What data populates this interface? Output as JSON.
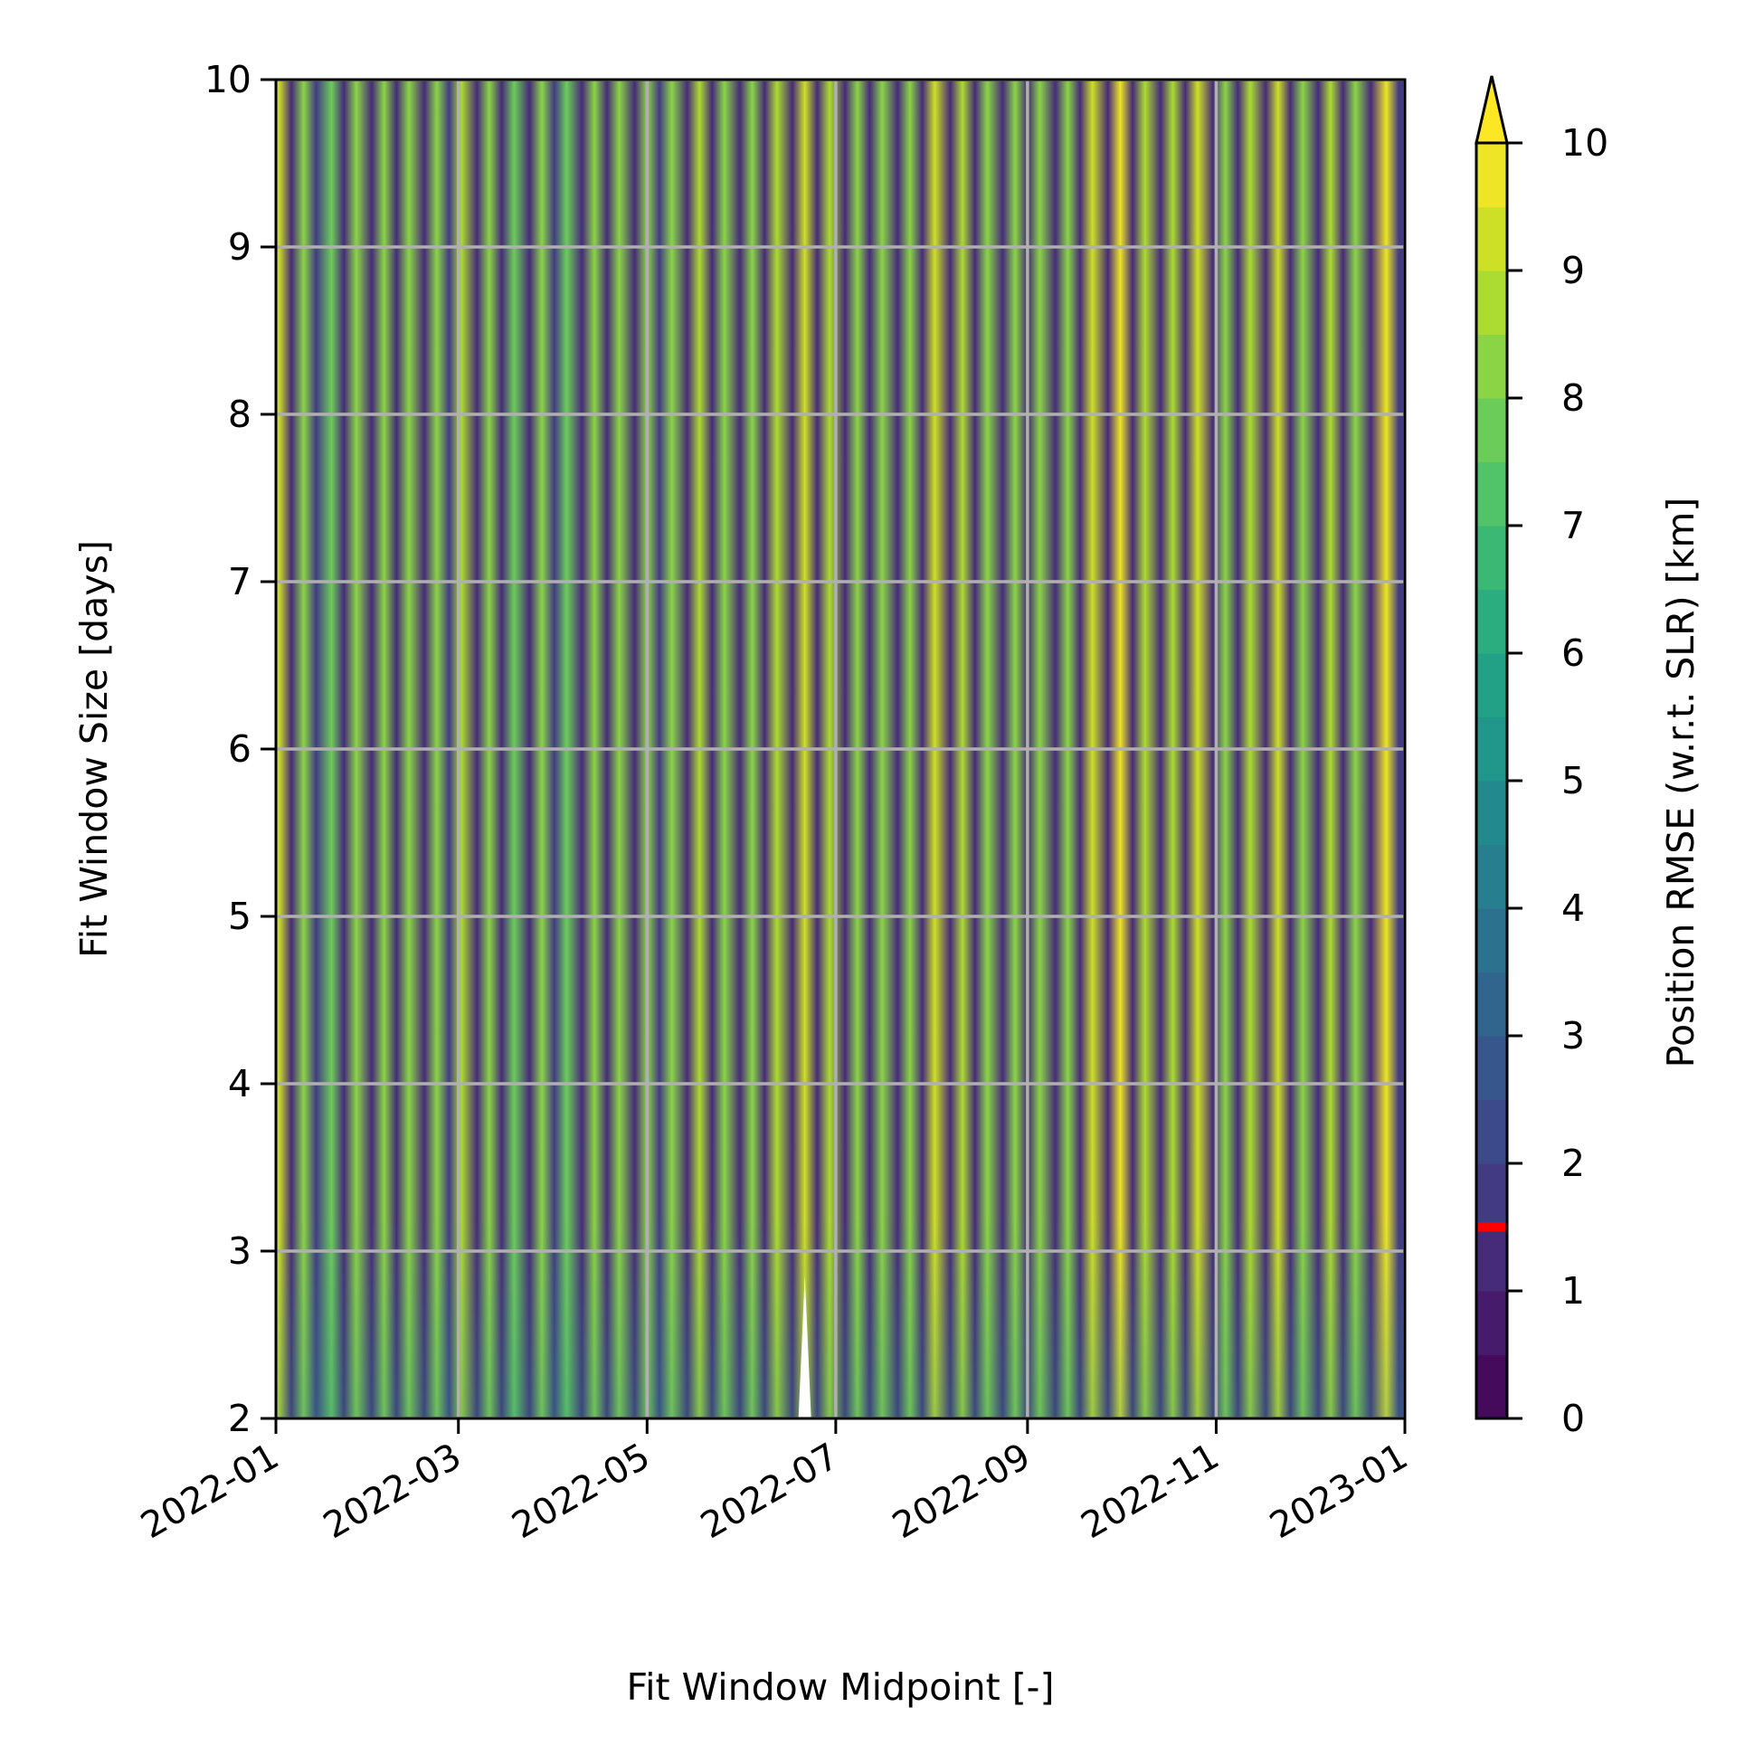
{
  "chart_data": {
    "type": "heatmap",
    "title": "",
    "xlabel": "Fit Window Midpoint [-]",
    "ylabel": "Fit Window Size [days]",
    "x_tick_labels": [
      "2022-01",
      "2022-03",
      "2022-05",
      "2022-07",
      "2022-09",
      "2022-11",
      "2023-01"
    ],
    "x_ticks": [
      "2022-01-01",
      "2022-03-01",
      "2022-05-01",
      "2022-07-01",
      "2022-09-01",
      "2022-11-01",
      "2023-01-01"
    ],
    "xlim": [
      "2022-01-01",
      "2023-01-01"
    ],
    "y_ticks": [
      2,
      3,
      4,
      5,
      6,
      7,
      8,
      9,
      10
    ],
    "ylim": [
      2,
      10
    ],
    "grid": true,
    "colorbar": {
      "label": "Position RMSE (w.r.t. SLR) [km]",
      "ticks": [
        0,
        1,
        2,
        3,
        4,
        5,
        6,
        7,
        8,
        9,
        10
      ],
      "range": [
        0,
        10
      ],
      "levels": 20,
      "extend": "max",
      "colormap": "viridis",
      "reference_marker": {
        "value": 1.5,
        "color": "#ff0000"
      }
    },
    "bands": {
      "description_levels": "vertical stripes of RMSE varying with midpoint date; largely constant with window size",
      "peaks": [
        {
          "x": "2022-01-02",
          "value": 9.2
        },
        {
          "x": "2022-01-10",
          "value": 8.1
        },
        {
          "x": "2022-01-19",
          "value": 7.9
        },
        {
          "x": "2022-01-27",
          "value": 8.0
        },
        {
          "x": "2022-02-05",
          "value": 8.3
        },
        {
          "x": "2022-02-13",
          "value": 8.0
        },
        {
          "x": "2022-02-22",
          "value": 8.2
        },
        {
          "x": "2022-03-02",
          "value": 8.5
        },
        {
          "x": "2022-03-11",
          "value": 8.0
        },
        {
          "x": "2022-03-19",
          "value": 7.8
        },
        {
          "x": "2022-03-28",
          "value": 8.1
        },
        {
          "x": "2022-04-05",
          "value": 7.9
        },
        {
          "x": "2022-04-14",
          "value": 8.0
        },
        {
          "x": "2022-04-22",
          "value": 8.3
        },
        {
          "x": "2022-05-01",
          "value": 8.1
        },
        {
          "x": "2022-05-09",
          "value": 8.0
        },
        {
          "x": "2022-05-18",
          "value": 8.8
        },
        {
          "x": "2022-05-26",
          "value": 8.4
        },
        {
          "x": "2022-06-04",
          "value": 8.2
        },
        {
          "x": "2022-06-12",
          "value": 8.6
        },
        {
          "x": "2022-06-21",
          "value": 9.4
        },
        {
          "x": "2022-06-29",
          "value": 8.5
        },
        {
          "x": "2022-07-08",
          "value": 8.2
        },
        {
          "x": "2022-07-16",
          "value": 8.4
        },
        {
          "x": "2022-07-25",
          "value": 8.3
        },
        {
          "x": "2022-08-02",
          "value": 9.0
        },
        {
          "x": "2022-08-11",
          "value": 8.5
        },
        {
          "x": "2022-08-19",
          "value": 8.3
        },
        {
          "x": "2022-08-28",
          "value": 8.1
        },
        {
          "x": "2022-09-05",
          "value": 8.0
        },
        {
          "x": "2022-09-14",
          "value": 8.3
        },
        {
          "x": "2022-09-22",
          "value": 9.1
        },
        {
          "x": "2022-10-01",
          "value": 9.5
        },
        {
          "x": "2022-10-09",
          "value": 8.9
        },
        {
          "x": "2022-10-18",
          "value": 8.6
        },
        {
          "x": "2022-10-26",
          "value": 9.3
        },
        {
          "x": "2022-11-04",
          "value": 8.4
        },
        {
          "x": "2022-11-12",
          "value": 8.6
        },
        {
          "x": "2022-11-21",
          "value": 9.4
        },
        {
          "x": "2022-11-29",
          "value": 8.2
        },
        {
          "x": "2022-12-08",
          "value": 8.6
        },
        {
          "x": "2022-12-16",
          "value": 8.3
        },
        {
          "x": "2022-12-26",
          "value": 9.8
        }
      ],
      "troughs": [
        {
          "x": "2022-01-06",
          "value": 1.2
        },
        {
          "x": "2022-01-14",
          "value": 1.5
        },
        {
          "x": "2022-01-23",
          "value": 1.3
        },
        {
          "x": "2022-02-01",
          "value": 1.4
        },
        {
          "x": "2022-02-09",
          "value": 1.2
        },
        {
          "x": "2022-02-18",
          "value": 1.3
        },
        {
          "x": "2022-02-26",
          "value": 1.5
        },
        {
          "x": "2022-03-07",
          "value": 1.2
        },
        {
          "x": "2022-03-15",
          "value": 1.4
        },
        {
          "x": "2022-03-24",
          "value": 1.3
        },
        {
          "x": "2022-04-01",
          "value": 1.5
        },
        {
          "x": "2022-04-10",
          "value": 1.2
        },
        {
          "x": "2022-04-18",
          "value": 1.4
        },
        {
          "x": "2022-04-27",
          "value": 1.3
        },
        {
          "x": "2022-05-05",
          "value": 1.5
        },
        {
          "x": "2022-05-14",
          "value": 1.3
        },
        {
          "x": "2022-05-22",
          "value": 1.2
        },
        {
          "x": "2022-05-31",
          "value": 1.4
        },
        {
          "x": "2022-06-08",
          "value": 1.3
        },
        {
          "x": "2022-06-17",
          "value": 1.2
        },
        {
          "x": "2022-06-25",
          "value": 1.4
        },
        {
          "x": "2022-07-04",
          "value": 1.3
        },
        {
          "x": "2022-07-12",
          "value": 1.2
        },
        {
          "x": "2022-07-21",
          "value": 1.4
        },
        {
          "x": "2022-07-29",
          "value": 1.3
        },
        {
          "x": "2022-08-07",
          "value": 1.2
        },
        {
          "x": "2022-08-15",
          "value": 1.3
        },
        {
          "x": "2022-08-24",
          "value": 1.4
        },
        {
          "x": "2022-09-01",
          "value": 1.3
        },
        {
          "x": "2022-09-10",
          "value": 1.2
        },
        {
          "x": "2022-09-18",
          "value": 1.4
        },
        {
          "x": "2022-09-27",
          "value": 1.2
        },
        {
          "x": "2022-10-05",
          "value": 1.1
        },
        {
          "x": "2022-10-14",
          "value": 1.3
        },
        {
          "x": "2022-10-22",
          "value": 1.0
        },
        {
          "x": "2022-10-31",
          "value": 1.2
        },
        {
          "x": "2022-11-08",
          "value": 1.3
        },
        {
          "x": "2022-11-17",
          "value": 1.2
        },
        {
          "x": "2022-11-25",
          "value": 1.4
        },
        {
          "x": "2022-12-04",
          "value": 1.3
        },
        {
          "x": "2022-12-12",
          "value": 1.2
        },
        {
          "x": "2022-12-21",
          "value": 1.3
        },
        {
          "x": "2022-12-30",
          "value": 1.5
        }
      ]
    },
    "missing_region": {
      "x": "2022-06-21",
      "y_range": [
        2,
        2.85
      ]
    }
  }
}
